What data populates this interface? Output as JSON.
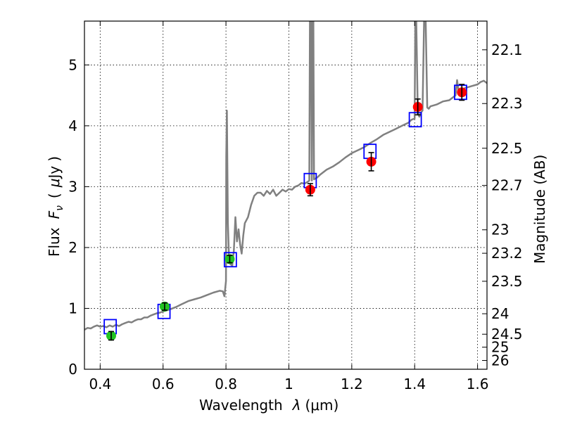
{
  "chart_data": {
    "type": "line",
    "title": "",
    "xlabel": "Wavelength  λ (μm)",
    "ylabel": "Flux  F_ν  ( μJy )",
    "ylabel_parts": {
      "prefix": "Flux",
      "F": "F",
      "nu": "ν",
      "paren_open": "(",
      "mu": "μ",
      "unit": "Jy",
      "paren_close": ")"
    },
    "xlabel_parts": {
      "text": "Wavelength",
      "lambda": "λ",
      "unit": "(μm)"
    },
    "y2label": "Magnitude (AB)",
    "xlim": [
      0.35,
      1.63
    ],
    "ylim": [
      0,
      5.72
    ],
    "xticks": [
      0.4,
      0.6,
      0.8,
      1.0,
      1.2,
      1.4,
      1.6
    ],
    "xtick_labels": [
      "0.4",
      "0.6",
      "0.8",
      "1",
      "1.2",
      "1.4",
      "1.6"
    ],
    "yticks": [
      0,
      1,
      2,
      3,
      4,
      5
    ],
    "ytick_labels": [
      "0",
      "1",
      "2",
      "3",
      "4",
      "5"
    ],
    "mag_ticks": [
      22.1,
      22.3,
      22.5,
      22.7,
      23,
      23.2,
      23.5,
      24,
      24.5,
      25,
      26
    ],
    "mag_tick_labels": [
      "22.1",
      "22.3",
      "22.5",
      "22.7",
      "23",
      "23.2",
      "23.5",
      "24",
      "24.5",
      "25",
      "26"
    ],
    "mag_zero_point_ujy": 3631000000,
    "grid": true,
    "colors": {
      "model": "#808080",
      "model_photometry": "#0000ff",
      "obs_green": "#22c422",
      "obs_red": "#ff0000",
      "errorbar": "#000000"
    },
    "series": [
      {
        "name": "model spectrum",
        "kind": "line",
        "x": [
          0.35,
          0.36,
          0.37,
          0.38,
          0.39,
          0.4,
          0.41,
          0.42,
          0.43,
          0.44,
          0.45,
          0.46,
          0.47,
          0.48,
          0.49,
          0.5,
          0.51,
          0.52,
          0.53,
          0.54,
          0.55,
          0.56,
          0.57,
          0.58,
          0.59,
          0.6,
          0.62,
          0.64,
          0.66,
          0.68,
          0.7,
          0.72,
          0.74,
          0.76,
          0.78,
          0.79,
          0.795,
          0.8,
          0.801,
          0.803,
          0.806,
          0.81,
          0.82,
          0.825,
          0.83,
          0.835,
          0.84,
          0.845,
          0.85,
          0.855,
          0.86,
          0.87,
          0.88,
          0.89,
          0.9,
          0.91,
          0.92,
          0.93,
          0.94,
          0.95,
          0.96,
          0.97,
          0.98,
          0.99,
          1.0,
          1.01,
          1.02,
          1.03,
          1.04,
          1.05,
          1.06,
          1.065,
          1.067,
          1.07,
          1.073,
          1.075,
          1.078,
          1.08,
          1.09,
          1.1,
          1.12,
          1.14,
          1.16,
          1.18,
          1.2,
          1.22,
          1.24,
          1.26,
          1.28,
          1.3,
          1.32,
          1.34,
          1.36,
          1.38,
          1.39,
          1.4,
          1.402,
          1.405,
          1.41,
          1.415,
          1.42,
          1.425,
          1.43,
          1.435,
          1.44,
          1.445,
          1.45,
          1.47,
          1.49,
          1.51,
          1.53,
          1.535,
          1.54,
          1.545,
          1.55,
          1.56,
          1.58,
          1.6,
          1.61,
          1.62,
          1.63
        ],
        "y": [
          0.65,
          0.68,
          0.67,
          0.7,
          0.72,
          0.7,
          0.71,
          0.69,
          0.72,
          0.7,
          0.73,
          0.71,
          0.74,
          0.76,
          0.78,
          0.77,
          0.8,
          0.82,
          0.82,
          0.85,
          0.85,
          0.88,
          0.9,
          0.92,
          0.93,
          0.95,
          0.98,
          1.02,
          1.07,
          1.12,
          1.15,
          1.18,
          1.22,
          1.26,
          1.29,
          1.28,
          1.2,
          1.45,
          3.5,
          4.25,
          2.4,
          1.75,
          1.7,
          1.95,
          2.5,
          2.1,
          2.3,
          2.05,
          1.9,
          2.2,
          2.4,
          2.5,
          2.7,
          2.85,
          2.9,
          2.9,
          2.85,
          2.93,
          2.88,
          2.95,
          2.85,
          2.9,
          2.95,
          2.92,
          2.96,
          2.95,
          3.0,
          3.02,
          3.06,
          3.05,
          3.08,
          3.1,
          5.72,
          5.72,
          3.1,
          5.72,
          5.72,
          3.12,
          3.15,
          3.2,
          3.28,
          3.33,
          3.4,
          3.48,
          3.55,
          3.6,
          3.65,
          3.72,
          3.78,
          3.85,
          3.9,
          3.95,
          4.0,
          4.05,
          4.1,
          4.12,
          5.72,
          5.72,
          4.2,
          4.15,
          4.22,
          4.25,
          5.72,
          5.72,
          4.3,
          4.28,
          4.32,
          4.35,
          4.4,
          4.42,
          4.5,
          4.75,
          4.55,
          4.6,
          4.58,
          4.62,
          4.65,
          4.68,
          4.72,
          4.74,
          4.7
        ]
      },
      {
        "name": "model photometry",
        "kind": "open-square",
        "x": [
          0.432,
          0.603,
          0.814,
          1.068,
          1.258,
          1.402,
          1.546
        ],
        "y": [
          0.7,
          0.95,
          1.8,
          3.1,
          3.58,
          4.1,
          4.55
        ]
      },
      {
        "name": "observed (green)",
        "kind": "filled-circle",
        "x": [
          0.435,
          0.605,
          0.812
        ],
        "y": [
          0.55,
          1.03,
          1.81
        ],
        "yerr": [
          0.07,
          0.06,
          0.06
        ]
      },
      {
        "name": "observed (red)",
        "kind": "filled-circle",
        "x": [
          1.068,
          1.262,
          1.41,
          1.55
        ],
        "y": [
          2.95,
          3.41,
          4.31,
          4.55
        ],
        "yerr": [
          0.1,
          0.15,
          0.13,
          0.13
        ]
      }
    ]
  }
}
